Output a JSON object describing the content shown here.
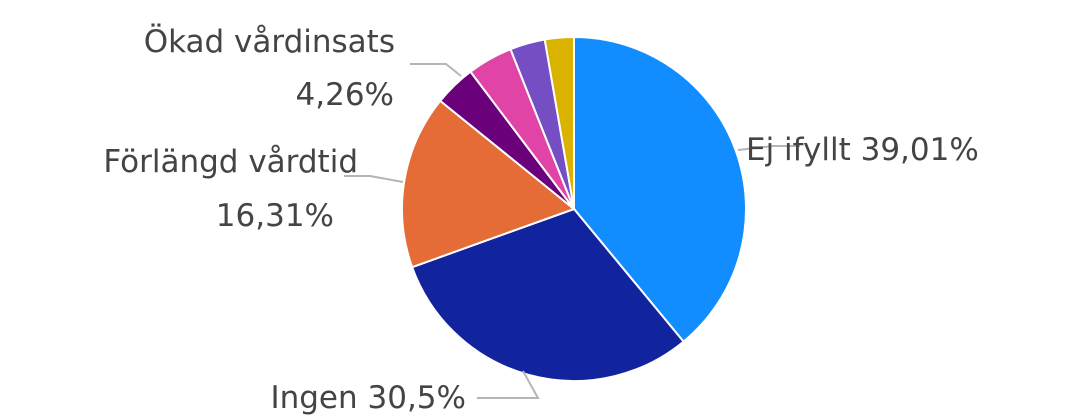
{
  "chart_data": {
    "type": "pie",
    "title": "",
    "start_angle_deg": 0,
    "direction": "clockwise",
    "slices": [
      {
        "name": "Ej ifyllt",
        "value": 39.01,
        "percent_label": "39,01%",
        "color": "#118DFF",
        "label_line1": "Ej ifyllt 39,01%",
        "label_line2": ""
      },
      {
        "name": "Ingen",
        "value": 30.5,
        "percent_label": "30,5%",
        "color": "#12239E",
        "label_line1": "Ingen 30,5%",
        "label_line2": ""
      },
      {
        "name": "Förlängd vårdtid",
        "value": 16.31,
        "percent_label": "16,31%",
        "color": "#E66C37",
        "label_line1": "Förlängd vårdtid",
        "label_line2": "16,31%"
      },
      {
        "name": "",
        "value": 3.9,
        "percent_label": "",
        "color": "#6B007B",
        "label_line1": "",
        "label_line2": ""
      },
      {
        "name": "Ökad vårdinsats",
        "value": 4.26,
        "percent_label": "4,26%",
        "color": "#E044A7",
        "label_line1": "Ökad vårdinsats",
        "label_line2": "4,26%"
      },
      {
        "name": "",
        "value": 3.3,
        "percent_label": "",
        "color": "#744EC2",
        "label_line1": "",
        "label_line2": ""
      },
      {
        "name": "",
        "value": 2.72,
        "percent_label": "",
        "color": "#D9B300",
        "label_line1": "",
        "label_line2": ""
      }
    ]
  }
}
